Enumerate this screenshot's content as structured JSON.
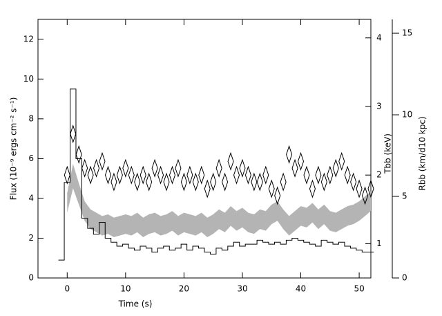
{
  "chart_data": {
    "type": "line",
    "xlabel": "Time (s)",
    "ylabel": "Flux (10⁻⁹ ergs cm⁻² s⁻¹)",
    "y2label": "Tbb (keV)",
    "y3label": "Rbb (km/d10 kpc)",
    "xlim": [
      -5,
      52
    ],
    "xticks": [
      0,
      10,
      20,
      30,
      40,
      50
    ],
    "ylim": [
      0,
      13
    ],
    "yticks": [
      0,
      2,
      4,
      6,
      8,
      10,
      12
    ],
    "y2lim": [
      0.5,
      4.27
    ],
    "y2ticks": [
      1,
      2,
      3,
      4
    ],
    "y3lim": [
      0,
      15.85
    ],
    "y3ticks": [
      0,
      5,
      10,
      15
    ],
    "series": [
      {
        "style": "step",
        "color": "#000000",
        "axis": "y",
        "x": [
          -1,
          0,
          1,
          2,
          3,
          4,
          5,
          6,
          7,
          8,
          9,
          10,
          11,
          12,
          13,
          14,
          15,
          16,
          17,
          18,
          19,
          20,
          21,
          22,
          23,
          24,
          25,
          26,
          27,
          28,
          29,
          30,
          31,
          32,
          33,
          34,
          35,
          36,
          37,
          38,
          39,
          40,
          41,
          42,
          43,
          44,
          45,
          46,
          47,
          48,
          49,
          50,
          51,
          52
        ],
        "values": [
          0.9,
          4.8,
          9.5,
          6.0,
          3.0,
          2.5,
          2.2,
          2.8,
          2.0,
          1.8,
          1.6,
          1.7,
          1.5,
          1.4,
          1.6,
          1.5,
          1.3,
          1.5,
          1.6,
          1.4,
          1.5,
          1.7,
          1.4,
          1.6,
          1.5,
          1.3,
          1.2,
          1.5,
          1.4,
          1.6,
          1.8,
          1.6,
          1.7,
          1.7,
          1.9,
          1.8,
          1.7,
          1.8,
          1.7,
          1.9,
          2.0,
          1.9,
          1.8,
          1.7,
          1.6,
          1.9,
          1.8,
          1.7,
          1.8,
          1.6,
          1.5,
          1.4,
          1.3,
          1.3
        ]
      },
      {
        "style": "diamond",
        "color": "#000000",
        "axis": "y2",
        "x": [
          0,
          1,
          2,
          3,
          4,
          5,
          6,
          7,
          8,
          9,
          10,
          11,
          12,
          13,
          14,
          15,
          16,
          17,
          18,
          19,
          20,
          21,
          22,
          23,
          24,
          25,
          26,
          27,
          28,
          29,
          30,
          31,
          32,
          33,
          34,
          35,
          36,
          37,
          38,
          39,
          40,
          41,
          42,
          43,
          44,
          45,
          46,
          47,
          48,
          49,
          50,
          51,
          52
        ],
        "values": [
          2.0,
          2.6,
          2.3,
          2.1,
          2.0,
          2.1,
          2.2,
          2.0,
          1.9,
          2.0,
          2.1,
          2.0,
          1.9,
          2.0,
          1.9,
          2.1,
          2.0,
          1.9,
          2.0,
          2.1,
          1.9,
          2.0,
          1.9,
          2.0,
          1.8,
          1.9,
          2.1,
          1.9,
          2.2,
          2.0,
          2.1,
          2.0,
          1.9,
          1.9,
          2.0,
          1.8,
          1.7,
          1.9,
          2.3,
          2.1,
          2.2,
          2.0,
          1.8,
          2.0,
          1.9,
          2.0,
          2.1,
          2.2,
          2.0,
          1.9,
          1.8,
          1.7,
          1.8
        ]
      },
      {
        "style": "band",
        "color": "#b4b4b4",
        "axis": "y3",
        "x": [
          0,
          1,
          2,
          3,
          4,
          5,
          6,
          7,
          8,
          9,
          10,
          11,
          12,
          13,
          14,
          15,
          16,
          17,
          18,
          19,
          20,
          21,
          22,
          23,
          24,
          25,
          26,
          27,
          28,
          29,
          30,
          31,
          32,
          33,
          34,
          35,
          36,
          37,
          38,
          39,
          40,
          41,
          42,
          43,
          44,
          45,
          46,
          47,
          48,
          49,
          50,
          51,
          52
        ],
        "low": [
          4,
          5.5,
          4.5,
          3.5,
          3.0,
          2.8,
          2.6,
          2.7,
          2.5,
          2.6,
          2.7,
          2.6,
          2.8,
          2.5,
          2.7,
          2.8,
          2.6,
          2.7,
          2.9,
          2.6,
          2.8,
          2.7,
          2.6,
          2.8,
          2.5,
          2.7,
          3.0,
          2.8,
          3.2,
          2.9,
          3.1,
          2.8,
          2.7,
          3.0,
          2.9,
          3.3,
          3.5,
          3.0,
          2.6,
          2.9,
          3.2,
          3.1,
          3.4,
          3.0,
          3.3,
          2.9,
          2.8,
          3.0,
          3.2,
          3.3,
          3.5,
          3.8,
          4.1
        ],
        "high": [
          5.2,
          7.0,
          5.8,
          4.7,
          4.2,
          4.0,
          3.8,
          3.9,
          3.7,
          3.8,
          3.9,
          3.8,
          4.0,
          3.7,
          3.9,
          4.0,
          3.8,
          3.9,
          4.1,
          3.8,
          4.0,
          3.9,
          3.8,
          4.0,
          3.7,
          3.9,
          4.2,
          4.0,
          4.4,
          4.1,
          4.3,
          4.0,
          3.9,
          4.2,
          4.1,
          4.5,
          4.7,
          4.2,
          3.8,
          4.1,
          4.4,
          4.3,
          4.6,
          4.2,
          4.5,
          4.1,
          4.0,
          4.2,
          4.4,
          4.5,
          4.7,
          5.0,
          5.3
        ]
      }
    ]
  }
}
